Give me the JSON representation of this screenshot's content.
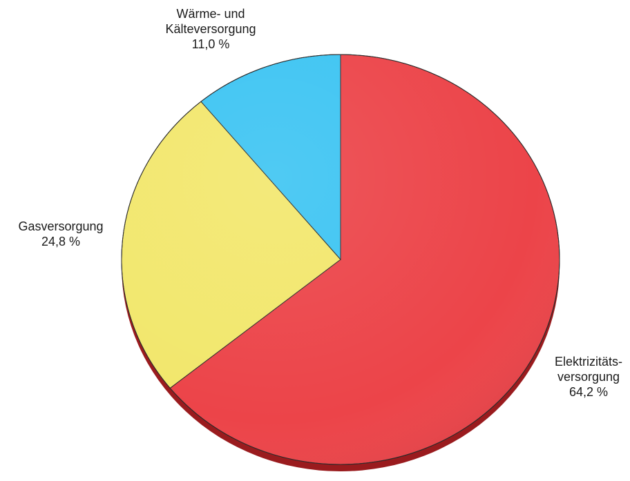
{
  "chart_data": {
    "type": "pie",
    "start_angle_deg": 0,
    "direction": "clockwise",
    "style": "3d-tilted",
    "slices": [
      {
        "label_lines": [
          "Elektrizitäts-",
          "versorgung"
        ],
        "value": 64.2,
        "value_label": "64,2 %",
        "color": "#ec4449"
      },
      {
        "label_lines": [
          "Gasversorgung"
        ],
        "value": 24.8,
        "value_label": "24,8 %",
        "color": "#f2e76c"
      },
      {
        "label_lines": [
          "Wärme- und",
          "Kälteversorgung"
        ],
        "value": 11.0,
        "value_label": "11,0 %",
        "color": "#3cc4f2"
      }
    ],
    "edge_color": "#9a1b1e",
    "outline_color": "#2b2b2b"
  }
}
